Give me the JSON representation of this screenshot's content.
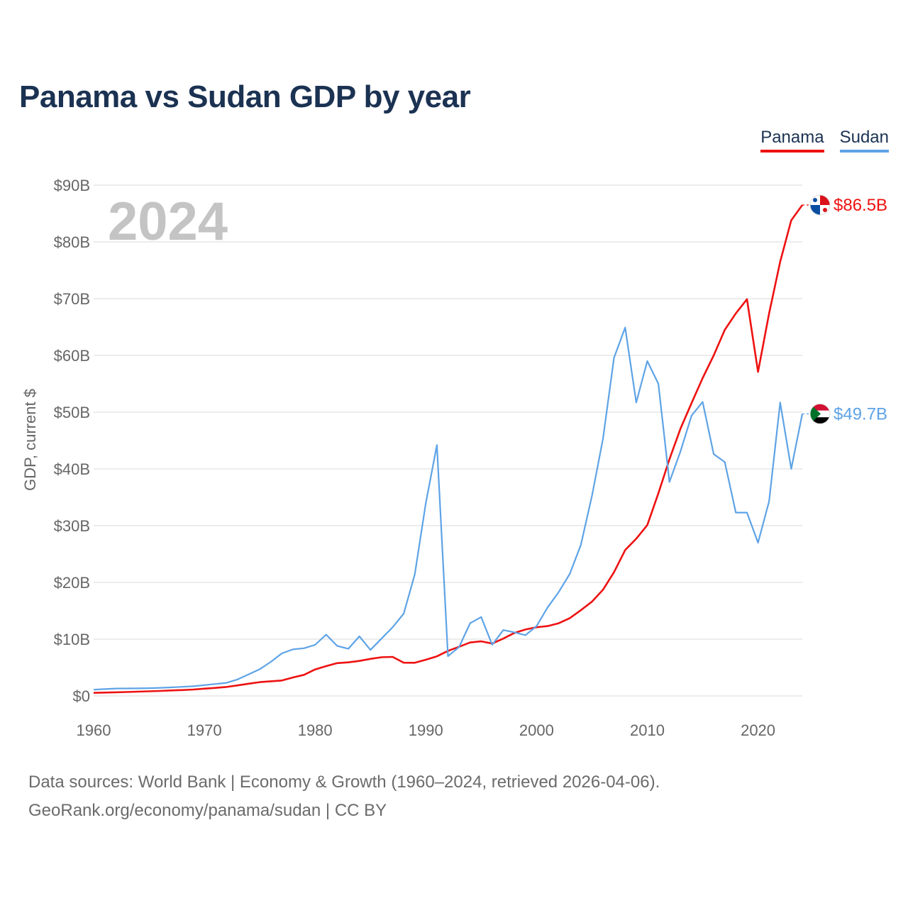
{
  "title": "Panama vs Sudan GDP by year",
  "legend": {
    "panama": "Panama",
    "sudan": "Sudan"
  },
  "footer": {
    "line1": "Data sources: World Bank | Economy & Growth (1960–2024, retrieved 2026-04-06).",
    "line2": "GeoRank.org/economy/panama/sudan | CC BY"
  },
  "colors": {
    "panama": "#ee1111",
    "sudan": "#5ea3e6",
    "grid": "#e6e6e6"
  },
  "chart_data": {
    "type": "line",
    "title": "Panama vs Sudan GDP by year",
    "xlabel": "",
    "ylabel": "GDP, current $",
    "year_label": "2024",
    "xlim": [
      1960,
      2024
    ],
    "ylim": [
      0,
      90
    ],
    "x_ticks": [
      1960,
      1970,
      1980,
      1990,
      2000,
      2010,
      2020
    ],
    "y_ticks": [
      {
        "value": 0,
        "label": "$0"
      },
      {
        "value": 10,
        "label": "$10B"
      },
      {
        "value": 20,
        "label": "$20B"
      },
      {
        "value": 30,
        "label": "$30B"
      },
      {
        "value": 40,
        "label": "$40B"
      },
      {
        "value": 50,
        "label": "$50B"
      },
      {
        "value": 60,
        "label": "$60B"
      },
      {
        "value": 70,
        "label": "$70B"
      },
      {
        "value": 80,
        "label": "$80B"
      },
      {
        "value": 90,
        "label": "$90B"
      }
    ],
    "units": "billions of current US$",
    "x": [
      1960,
      1961,
      1962,
      1963,
      1964,
      1965,
      1966,
      1967,
      1968,
      1969,
      1970,
      1971,
      1972,
      1973,
      1974,
      1975,
      1976,
      1977,
      1978,
      1979,
      1980,
      1981,
      1982,
      1983,
      1984,
      1985,
      1986,
      1987,
      1988,
      1989,
      1990,
      1991,
      1992,
      1993,
      1994,
      1995,
      1996,
      1997,
      1998,
      1999,
      2000,
      2001,
      2002,
      2003,
      2004,
      2005,
      2006,
      2007,
      2008,
      2009,
      2010,
      2011,
      2012,
      2013,
      2014,
      2015,
      2016,
      2017,
      2018,
      2019,
      2020,
      2021,
      2022,
      2023,
      2024
    ],
    "series": [
      {
        "name": "Panama",
        "end_label": "$86.5B",
        "values": [
          0.54,
          0.59,
          0.64,
          0.69,
          0.75,
          0.81,
          0.87,
          0.96,
          1.03,
          1.13,
          1.27,
          1.41,
          1.58,
          1.85,
          2.15,
          2.42,
          2.58,
          2.71,
          3.25,
          3.71,
          4.66,
          5.25,
          5.77,
          5.91,
          6.16,
          6.52,
          6.81,
          6.87,
          5.85,
          5.84,
          6.38,
          6.98,
          7.92,
          8.65,
          9.41,
          9.61,
          9.22,
          10.1,
          11.1,
          11.7,
          12.1,
          12.3,
          12.8,
          13.7,
          15.1,
          16.6,
          18.7,
          21.8,
          25.7,
          27.7,
          30.1,
          35.7,
          41.7,
          47.1,
          51.6,
          56.0,
          60.0,
          64.5,
          67.4,
          69.9,
          57.1,
          67.4,
          76.5,
          83.8,
          86.5
        ]
      },
      {
        "name": "Sudan",
        "end_label": "$49.7B",
        "values": [
          1.1,
          1.2,
          1.3,
          1.31,
          1.33,
          1.36,
          1.43,
          1.5,
          1.6,
          1.7,
          1.9,
          2.1,
          2.3,
          2.9,
          3.8,
          4.7,
          6.0,
          7.5,
          8.2,
          8.4,
          9.0,
          10.8,
          8.8,
          8.3,
          10.5,
          8.1,
          10.1,
          12.1,
          14.5,
          21.4,
          34.0,
          44.2,
          7.0,
          8.6,
          12.8,
          13.9,
          9.0,
          11.6,
          11.2,
          10.7,
          12.3,
          15.6,
          18.3,
          21.5,
          26.6,
          35.2,
          45.3,
          59.6,
          64.9,
          51.7,
          59.0,
          55.0,
          37.7,
          43.1,
          49.4,
          51.8,
          42.6,
          41.2,
          32.3,
          32.3,
          27.0,
          34.3,
          51.7,
          40.0,
          49.7
        ]
      }
    ]
  }
}
